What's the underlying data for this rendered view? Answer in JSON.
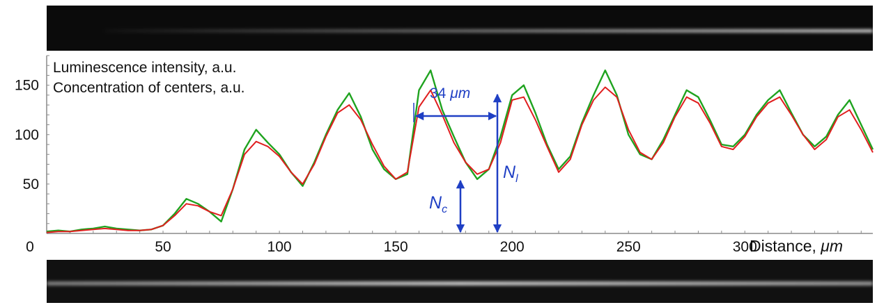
{
  "chart_data": {
    "type": "line",
    "xlabel": "Distance, ",
    "xlabel_unit": "μm",
    "x_ticks": [
      0,
      50,
      100,
      150,
      200,
      250,
      300
    ],
    "y_ticks": [
      0,
      50,
      100,
      150
    ],
    "xlim": [
      0,
      355
    ],
    "ylim": [
      0,
      180
    ],
    "grid": false,
    "legend_position": "top-left",
    "legend_lines": [
      "Luminescence intensity, a.u.",
      "Concentration of centers, a.u."
    ],
    "series": [
      {
        "color": "#1fa31f",
        "x": [
          0,
          5,
          10,
          15,
          20,
          25,
          30,
          35,
          40,
          45,
          50,
          55,
          60,
          65,
          70,
          75,
          80,
          85,
          90,
          95,
          100,
          105,
          110,
          115,
          120,
          125,
          130,
          135,
          140,
          145,
          150,
          155,
          160,
          165,
          170,
          175,
          180,
          185,
          190,
          195,
          200,
          205,
          210,
          215,
          220,
          225,
          230,
          235,
          240,
          245,
          250,
          255,
          260,
          265,
          270,
          275,
          280,
          285,
          290,
          295,
          300,
          305,
          310,
          315,
          320,
          325,
          330,
          335,
          340,
          345,
          350,
          355
        ],
        "values": [
          2,
          3,
          2,
          4,
          5,
          7,
          5,
          4,
          3,
          4,
          8,
          20,
          35,
          30,
          22,
          12,
          45,
          85,
          105,
          92,
          80,
          62,
          48,
          72,
          100,
          125,
          142,
          118,
          85,
          65,
          55,
          60,
          145,
          165,
          125,
          98,
          72,
          55,
          65,
          98,
          140,
          150,
          122,
          90,
          65,
          78,
          112,
          140,
          165,
          140,
          100,
          80,
          75,
          95,
          120,
          145,
          138,
          115,
          90,
          88,
          100,
          120,
          135,
          145,
          122,
          100,
          88,
          98,
          120,
          135,
          110,
          85
        ]
      },
      {
        "color": "#e01e1e",
        "x": [
          0,
          5,
          10,
          15,
          20,
          25,
          30,
          35,
          40,
          45,
          50,
          55,
          60,
          65,
          70,
          75,
          80,
          85,
          90,
          95,
          100,
          105,
          110,
          115,
          120,
          125,
          130,
          135,
          140,
          145,
          150,
          155,
          160,
          165,
          170,
          175,
          180,
          185,
          190,
          195,
          200,
          205,
          210,
          215,
          220,
          225,
          230,
          235,
          240,
          245,
          250,
          255,
          260,
          265,
          270,
          275,
          280,
          285,
          290,
          295,
          300,
          305,
          310,
          315,
          320,
          325,
          330,
          335,
          340,
          345,
          350,
          355
        ],
        "values": [
          1,
          2,
          2,
          3,
          4,
          5,
          4,
          3,
          3,
          4,
          8,
          18,
          30,
          28,
          22,
          18,
          45,
          80,
          93,
          88,
          78,
          62,
          50,
          70,
          98,
          122,
          130,
          115,
          90,
          68,
          55,
          62,
          128,
          145,
          120,
          92,
          72,
          60,
          65,
          92,
          135,
          138,
          115,
          88,
          62,
          75,
          110,
          135,
          148,
          138,
          105,
          82,
          75,
          92,
          118,
          138,
          132,
          112,
          88,
          85,
          98,
          118,
          132,
          138,
          120,
          100,
          85,
          95,
          118,
          125,
          105,
          82
        ]
      }
    ],
    "annotations": {
      "period_label": "34 ",
      "period_unit": "μm",
      "nc_main": "N",
      "nc_sub": "c",
      "nl_main": "N",
      "nl_sub": "l"
    }
  }
}
